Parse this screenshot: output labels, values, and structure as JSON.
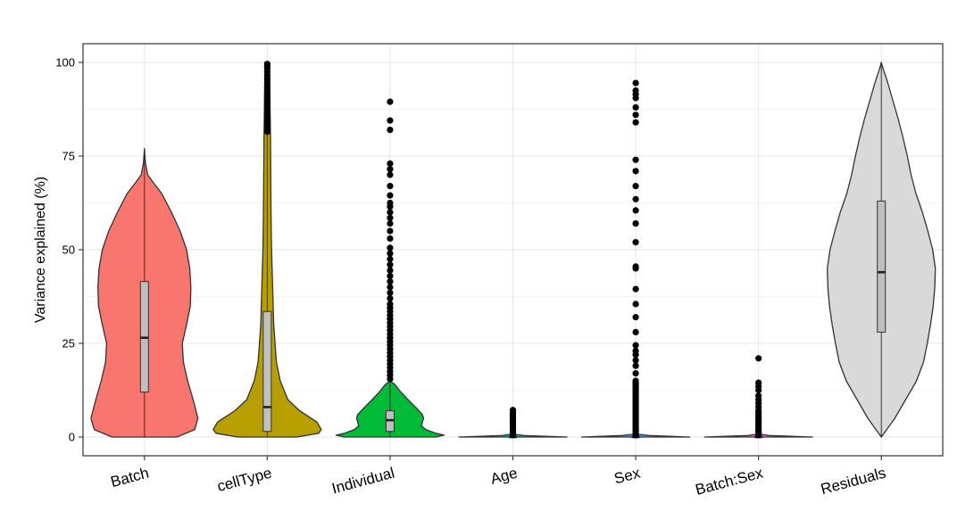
{
  "chart_data": {
    "type": "violin",
    "title": "",
    "xlabel": "",
    "ylabel": "Variance explained (%)",
    "ylim": [
      -5,
      105
    ],
    "yticks": [
      0,
      25,
      50,
      75,
      100
    ],
    "ytick_labels": [
      "0",
      "25",
      "50",
      "75",
      "100"
    ],
    "grid": true,
    "legend": "none",
    "categories": [
      "Batch",
      "cellType",
      "Individual",
      "Age",
      "Sex",
      "Batch:Sex",
      "Residuals"
    ],
    "colors": [
      "#F8766D",
      "#B79F00",
      "#00BA38",
      "#00BFC4",
      "#619CFF",
      "#F564E3",
      "#D9D9D9"
    ],
    "series": [
      {
        "category": "Batch",
        "box": {
          "min": 0,
          "q1": 12,
          "median": 26.5,
          "q3": 41.5,
          "max": 77
        },
        "density": [
          [
            0,
            0.6
          ],
          [
            2,
            0.93
          ],
          [
            5,
            0.99
          ],
          [
            10,
            0.9
          ],
          [
            15,
            0.8
          ],
          [
            20,
            0.72
          ],
          [
            25,
            0.7
          ],
          [
            30,
            0.78
          ],
          [
            35,
            0.85
          ],
          [
            40,
            0.86
          ],
          [
            45,
            0.84
          ],
          [
            50,
            0.78
          ],
          [
            55,
            0.66
          ],
          [
            60,
            0.5
          ],
          [
            65,
            0.32
          ],
          [
            68,
            0.16
          ],
          [
            70,
            0.06
          ],
          [
            73,
            0.02
          ],
          [
            77,
            0.0
          ]
        ],
        "outliers": []
      },
      {
        "category": "cellType",
        "box": {
          "min": 0,
          "q1": 1.5,
          "median": 8,
          "q3": 33.5,
          "max": 81
        },
        "density": [
          [
            0,
            0.55
          ],
          [
            1,
            0.95
          ],
          [
            2,
            1.0
          ],
          [
            4,
            0.92
          ],
          [
            7,
            0.6
          ],
          [
            10,
            0.38
          ],
          [
            15,
            0.24
          ],
          [
            20,
            0.17
          ],
          [
            30,
            0.12
          ],
          [
            40,
            0.1
          ],
          [
            50,
            0.08
          ],
          [
            60,
            0.07
          ],
          [
            70,
            0.065
          ],
          [
            80,
            0.06
          ],
          [
            90,
            0.05
          ],
          [
            95,
            0.045
          ],
          [
            100,
            0.04
          ]
        ],
        "outliers": [
          81.5,
          82.5,
          83.5,
          84.5,
          85.5,
          86.5,
          87.5,
          88.5,
          89.5,
          90.5,
          91.5,
          92.5,
          93.5,
          94.5,
          95.5,
          96.5,
          97.5,
          98.5,
          99.0,
          99.6
        ]
      },
      {
        "category": "Individual",
        "box": {
          "min": 0,
          "q1": 1.5,
          "median": 4.5,
          "q3": 7,
          "max": 15
        },
        "density": [
          [
            0,
            0.85
          ],
          [
            0.5,
            1.0
          ],
          [
            1,
            0.85
          ],
          [
            2,
            0.66
          ],
          [
            3,
            0.58
          ],
          [
            5,
            0.62
          ],
          [
            6,
            0.6
          ],
          [
            8,
            0.47
          ],
          [
            10,
            0.33
          ],
          [
            12,
            0.2
          ],
          [
            14,
            0.09
          ],
          [
            15,
            0.0
          ]
        ],
        "outliers": [
          15.5,
          16.5,
          17.5,
          18.5,
          19.5,
          20.5,
          21.5,
          22.5,
          23.5,
          24.5,
          25.5,
          26.5,
          27.5,
          28.5,
          29.5,
          30.5,
          31.5,
          32.5,
          33.5,
          34.5,
          35.5,
          37,
          38.5,
          40,
          41.5,
          43,
          44.5,
          46,
          47.5,
          49,
          50.5,
          53,
          55,
          57,
          58.5,
          60,
          61.5,
          62.5,
          64.5,
          67,
          70,
          71.5,
          73,
          82,
          84.5,
          89.5
        ]
      },
      {
        "category": "Age",
        "box": {
          "min": 0,
          "q1": 0,
          "median": 0,
          "q3": 0,
          "max": 0
        },
        "density": [
          [
            0,
            1.0
          ],
          [
            0.4,
            0.2
          ],
          [
            0.8,
            0.0
          ]
        ],
        "outliers": [
          0.5,
          1,
          1.5,
          2,
          2.5,
          3,
          3.5,
          4,
          4.5,
          5,
          5.5,
          6,
          6.5,
          7.2
        ]
      },
      {
        "category": "Sex",
        "box": {
          "min": 0,
          "q1": 0,
          "median": 0,
          "q3": 0,
          "max": 0
        },
        "density": [
          [
            0,
            1.0
          ],
          [
            0.4,
            0.25
          ],
          [
            0.8,
            0.0
          ]
        ],
        "outliers": [
          0.5,
          1,
          1.5,
          2,
          2.5,
          3,
          3.5,
          4,
          4.5,
          5,
          5.5,
          6,
          6.5,
          7,
          7.5,
          8,
          8.5,
          9,
          9.5,
          10,
          10.5,
          11,
          11.5,
          12,
          12.5,
          13,
          13.5,
          14,
          14.5,
          15,
          17,
          19,
          20.5,
          22,
          23,
          24.5,
          28,
          32,
          35.5,
          39.5,
          45,
          45.5,
          52,
          57,
          60.5,
          63.5,
          67,
          71,
          74,
          84,
          86,
          88,
          90.5,
          91.5,
          92.5,
          94.5
        ]
      },
      {
        "category": "Batch:Sex",
        "box": {
          "min": 0,
          "q1": 0,
          "median": 0,
          "q3": 0,
          "max": 0
        },
        "density": [
          [
            0,
            1.0
          ],
          [
            0.4,
            0.2
          ],
          [
            0.8,
            0.0
          ]
        ],
        "outliers": [
          0.5,
          1,
          1.5,
          2,
          2.5,
          3,
          3.5,
          4,
          4.5,
          5,
          5.5,
          6,
          6.5,
          7,
          8,
          9,
          10,
          11,
          12.5,
          13.5,
          14.5,
          21
        ]
      },
      {
        "category": "Residuals",
        "box": {
          "min": 0,
          "q1": 28,
          "median": 44,
          "q3": 63,
          "max": 100
        },
        "density": [
          [
            0,
            0.0
          ],
          [
            5,
            0.25
          ],
          [
            10,
            0.45
          ],
          [
            15,
            0.65
          ],
          [
            20,
            0.78
          ],
          [
            25,
            0.85
          ],
          [
            30,
            0.91
          ],
          [
            35,
            0.96
          ],
          [
            40,
            0.99
          ],
          [
            45,
            1.0
          ],
          [
            50,
            0.95
          ],
          [
            55,
            0.86
          ],
          [
            60,
            0.76
          ],
          [
            65,
            0.64
          ],
          [
            70,
            0.55
          ],
          [
            75,
            0.48
          ],
          [
            80,
            0.4
          ],
          [
            85,
            0.31
          ],
          [
            90,
            0.21
          ],
          [
            95,
            0.11
          ],
          [
            98,
            0.04
          ],
          [
            100,
            0.0
          ]
        ],
        "outliers": []
      }
    ]
  }
}
